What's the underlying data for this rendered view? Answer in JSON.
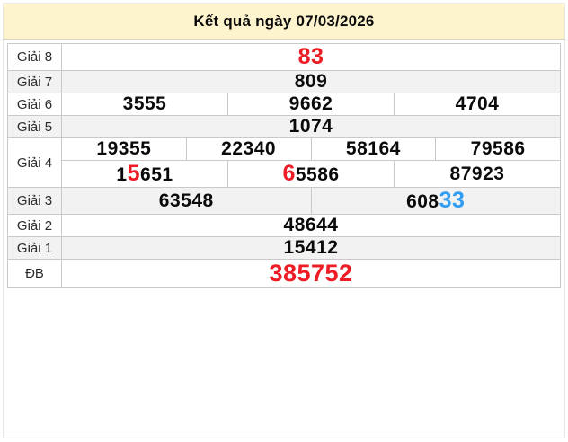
{
  "title": "Kết quả ngày 07/03/2026",
  "colors": {
    "red": "#ee1c25",
    "blue": "#2e9df3",
    "header_bg": "#fdf3cd",
    "alt_row_bg": "#f2f2f2",
    "border": "#c9c9c9"
  },
  "rows": [
    {
      "key": "giai-8",
      "label": "Giải 8",
      "lines": [
        {
          "cells": [
            {
              "size": "lg",
              "parts": [
                {
                  "t": "83",
                  "c": "red"
                }
              ]
            }
          ]
        }
      ]
    },
    {
      "key": "giai-7",
      "label": "Giải 7",
      "lines": [
        {
          "cells": [
            {
              "parts": [
                {
                  "t": "809"
                }
              ]
            }
          ]
        }
      ]
    },
    {
      "key": "giai-6",
      "label": "Giải 6",
      "lines": [
        {
          "cells": [
            {
              "parts": [
                {
                  "t": "3555"
                }
              ]
            },
            {
              "parts": [
                {
                  "t": "9662"
                }
              ]
            },
            {
              "parts": [
                {
                  "t": "4704"
                }
              ]
            }
          ]
        }
      ]
    },
    {
      "key": "giai-5",
      "label": "Giải 5",
      "lines": [
        {
          "cells": [
            {
              "parts": [
                {
                  "t": "1074"
                }
              ]
            }
          ]
        }
      ]
    },
    {
      "key": "giai-4",
      "label": "Giải 4",
      "lines": [
        {
          "cells": [
            {
              "parts": [
                {
                  "t": "19355"
                }
              ]
            },
            {
              "parts": [
                {
                  "t": "22340"
                }
              ]
            },
            {
              "parts": [
                {
                  "t": "58164"
                }
              ]
            },
            {
              "parts": [
                {
                  "t": "79586"
                }
              ]
            }
          ]
        },
        {
          "cells": [
            {
              "parts": [
                {
                  "t": "1"
                },
                {
                  "t": "5",
                  "c": "red",
                  "hl": true
                },
                {
                  "t": "651"
                }
              ]
            },
            {
              "parts": [
                {
                  "t": "6",
                  "c": "red",
                  "hl": true
                },
                {
                  "t": "5586"
                }
              ]
            },
            {
              "parts": [
                {
                  "t": "87923"
                }
              ]
            }
          ]
        }
      ]
    },
    {
      "key": "giai-3",
      "label": "Giải 3",
      "lines": [
        {
          "cells": [
            {
              "parts": [
                {
                  "t": "63548"
                }
              ]
            },
            {
              "parts": [
                {
                  "t": "608"
                },
                {
                  "t": "33",
                  "c": "blue",
                  "hl": true
                }
              ]
            }
          ]
        }
      ]
    },
    {
      "key": "giai-2",
      "label": "Giải 2",
      "lines": [
        {
          "cells": [
            {
              "parts": [
                {
                  "t": "48644"
                }
              ]
            }
          ]
        }
      ]
    },
    {
      "key": "giai-1",
      "label": "Giải 1",
      "lines": [
        {
          "cells": [
            {
              "parts": [
                {
                  "t": "15412"
                }
              ]
            }
          ]
        }
      ]
    },
    {
      "key": "db",
      "label": "ĐB",
      "lines": [
        {
          "cells": [
            {
              "size": "xl",
              "parts": [
                {
                  "t": "385752",
                  "c": "red"
                }
              ]
            }
          ]
        }
      ]
    }
  ]
}
